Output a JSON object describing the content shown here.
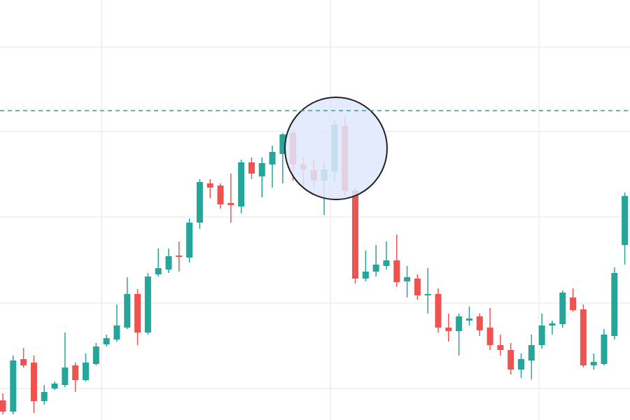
{
  "chart_data": {
    "type": "candlestick",
    "x": [
      0,
      1,
      2,
      3,
      4,
      5,
      6,
      7,
      8,
      9,
      10,
      11,
      12,
      13,
      14,
      15,
      16,
      17,
      18,
      19,
      20,
      21,
      22,
      23,
      24,
      25,
      26,
      27,
      28,
      29,
      30,
      31,
      32,
      33,
      34,
      35,
      36,
      37,
      38,
      39,
      40,
      41,
      42,
      43,
      44,
      45,
      46,
      47,
      48,
      49,
      50,
      51,
      52,
      53,
      54,
      55,
      56,
      57,
      58,
      59,
      60
    ],
    "open": [
      28,
      12,
      87,
      82,
      27,
      45,
      50,
      78,
      57,
      80,
      108,
      115,
      132,
      180,
      125,
      208,
      215,
      235,
      232,
      282,
      338,
      335,
      310,
      305,
      368,
      348,
      365,
      380,
      410,
      365,
      357,
      342,
      355,
      420,
      328,
      202,
      212,
      220,
      228,
      198,
      202,
      178,
      180,
      132,
      127,
      142,
      148,
      132,
      107,
      100,
      72,
      85,
      107,
      135,
      137,
      175,
      158,
      78,
      80,
      120,
      250
    ],
    "high": [
      38,
      92,
      103,
      92,
      50,
      55,
      125,
      82,
      95,
      110,
      122,
      165,
      204,
      187,
      210,
      245,
      245,
      255,
      288,
      344,
      344,
      338,
      352,
      372,
      375,
      375,
      392,
      410,
      415,
      375,
      372,
      368,
      428,
      435,
      332,
      242,
      250,
      255,
      265,
      220,
      208,
      217,
      188,
      152,
      152,
      162,
      152,
      160,
      122,
      110,
      95,
      122,
      152,
      142,
      185,
      188,
      165,
      95,
      130,
      218,
      325
    ],
    "low": [
      8,
      8,
      75,
      10,
      22,
      43,
      47,
      40,
      55,
      78,
      105,
      112,
      130,
      107,
      122,
      205,
      210,
      212,
      225,
      273,
      317,
      302,
      282,
      295,
      344,
      318,
      332,
      338,
      342,
      335,
      332,
      293,
      340,
      320,
      195,
      198,
      205,
      215,
      190,
      175,
      172,
      152,
      125,
      112,
      92,
      135,
      120,
      100,
      92,
      65,
      60,
      58,
      102,
      122,
      132,
      155,
      75,
      72,
      78,
      115,
      222
    ],
    "close": [
      12,
      85,
      78,
      27,
      40,
      52,
      75,
      57,
      82,
      105,
      117,
      135,
      180,
      125,
      205,
      217,
      234,
      233,
      282,
      340,
      332,
      308,
      307,
      368,
      352,
      367,
      383,
      408,
      365,
      358,
      342,
      358,
      422,
      327,
      202,
      212,
      222,
      228,
      197,
      204,
      178,
      180,
      132,
      127,
      148,
      145,
      128,
      107,
      100,
      72,
      87,
      107,
      135,
      138,
      182,
      157,
      78,
      83,
      122,
      210,
      320
    ],
    "up_color": "#26a69a",
    "down_color": "#ef5350",
    "xlim": [
      -0.27,
      60.5
    ],
    "ylim": [
      0,
      600
    ],
    "xticks": [
      9.52,
      31.6,
      51.72
    ],
    "yticks": [
      45,
      167,
      290,
      412,
      533
    ],
    "grid": true,
    "hline": 442,
    "hline_color": "#26a69a"
  }
}
